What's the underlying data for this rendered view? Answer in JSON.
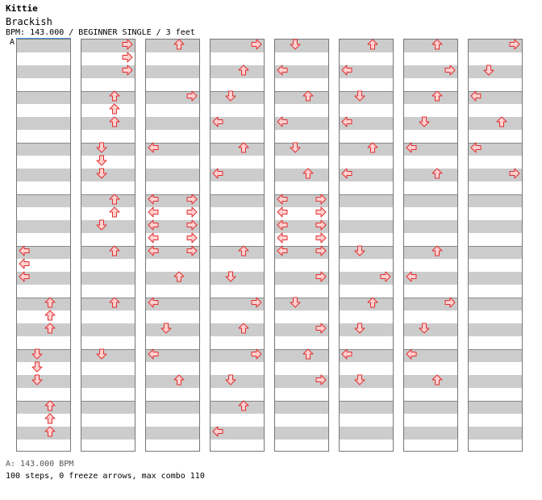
{
  "song": {
    "title": "Kittie",
    "subtitle": "Brackish",
    "info": "BPM: 143.000 / BEGINNER SINGLE / 3 feet"
  },
  "bpm_marker": "A",
  "footer": {
    "bpm_legend": "A: 143.000 BPM",
    "summary": "100 steps, 0 freeze arrows, max combo 110"
  },
  "colors": {
    "arrow_fill": "#ffd0d0",
    "arrow_stroke": "#e03030",
    "stripe": "#cccccc",
    "bpm_line": "#4a90d9"
  },
  "chart": {
    "columns": 8,
    "rows_per_column": 32,
    "measures_per_column": 8,
    "lanes": [
      "left",
      "down",
      "up",
      "right"
    ],
    "notes": [
      {
        "c": 0,
        "r": 0,
        "lanes": []
      },
      {
        "c": 0,
        "r": 16,
        "lanes": [
          0
        ]
      },
      {
        "c": 0,
        "r": 17,
        "lanes": [
          0
        ]
      },
      {
        "c": 0,
        "r": 18,
        "lanes": [
          0
        ]
      },
      {
        "c": 0,
        "r": 20,
        "lanes": [
          2
        ]
      },
      {
        "c": 0,
        "r": 21,
        "lanes": [
          2
        ]
      },
      {
        "c": 0,
        "r": 22,
        "lanes": [
          2
        ]
      },
      {
        "c": 0,
        "r": 24,
        "lanes": [
          1
        ]
      },
      {
        "c": 0,
        "r": 25,
        "lanes": [
          1
        ]
      },
      {
        "c": 0,
        "r": 26,
        "lanes": [
          1
        ]
      },
      {
        "c": 0,
        "r": 28,
        "lanes": [
          2
        ]
      },
      {
        "c": 0,
        "r": 29,
        "lanes": [
          2
        ]
      },
      {
        "c": 0,
        "r": 30,
        "lanes": [
          2
        ]
      },
      {
        "c": 1,
        "r": 0,
        "lanes": [
          3
        ]
      },
      {
        "c": 1,
        "r": 1,
        "lanes": [
          3
        ]
      },
      {
        "c": 1,
        "r": 2,
        "lanes": [
          3
        ]
      },
      {
        "c": 1,
        "r": 4,
        "lanes": [
          2
        ]
      },
      {
        "c": 1,
        "r": 5,
        "lanes": [
          2
        ]
      },
      {
        "c": 1,
        "r": 6,
        "lanes": [
          2
        ]
      },
      {
        "c": 1,
        "r": 8,
        "lanes": [
          1
        ]
      },
      {
        "c": 1,
        "r": 9,
        "lanes": [
          1
        ]
      },
      {
        "c": 1,
        "r": 10,
        "lanes": [
          1
        ]
      },
      {
        "c": 1,
        "r": 12,
        "lanes": [
          2
        ]
      },
      {
        "c": 1,
        "r": 13,
        "lanes": [
          2
        ]
      },
      {
        "c": 1,
        "r": 14,
        "lanes": [
          1
        ]
      },
      {
        "c": 1,
        "r": 16,
        "lanes": [
          2
        ]
      },
      {
        "c": 1,
        "r": 20,
        "lanes": [
          2
        ]
      },
      {
        "c": 1,
        "r": 24,
        "lanes": [
          1
        ]
      },
      {
        "c": 2,
        "r": 0,
        "lanes": [
          2
        ]
      },
      {
        "c": 2,
        "r": 4,
        "lanes": [
          3
        ]
      },
      {
        "c": 2,
        "r": 8,
        "lanes": [
          0
        ]
      },
      {
        "c": 2,
        "r": 12,
        "lanes": [
          0,
          3
        ]
      },
      {
        "c": 2,
        "r": 13,
        "lanes": [
          0,
          3
        ]
      },
      {
        "c": 2,
        "r": 14,
        "lanes": [
          0,
          3
        ]
      },
      {
        "c": 2,
        "r": 15,
        "lanes": [
          0,
          3
        ]
      },
      {
        "c": 2,
        "r": 16,
        "lanes": [
          0,
          3
        ]
      },
      {
        "c": 2,
        "r": 18,
        "lanes": [
          2
        ]
      },
      {
        "c": 2,
        "r": 20,
        "lanes": [
          0
        ]
      },
      {
        "c": 2,
        "r": 22,
        "lanes": [
          1
        ]
      },
      {
        "c": 2,
        "r": 24,
        "lanes": [
          0
        ]
      },
      {
        "c": 2,
        "r": 26,
        "lanes": [
          2
        ]
      },
      {
        "c": 3,
        "r": 0,
        "lanes": [
          3
        ]
      },
      {
        "c": 3,
        "r": 2,
        "lanes": [
          2
        ]
      },
      {
        "c": 3,
        "r": 4,
        "lanes": [
          1
        ]
      },
      {
        "c": 3,
        "r": 6,
        "lanes": [
          0
        ]
      },
      {
        "c": 3,
        "r": 8,
        "lanes": [
          2
        ]
      },
      {
        "c": 3,
        "r": 10,
        "lanes": [
          0
        ]
      },
      {
        "c": 3,
        "r": 16,
        "lanes": [
          2
        ]
      },
      {
        "c": 3,
        "r": 18,
        "lanes": [
          1
        ]
      },
      {
        "c": 3,
        "r": 20,
        "lanes": [
          3
        ]
      },
      {
        "c": 3,
        "r": 22,
        "lanes": [
          2
        ]
      },
      {
        "c": 3,
        "r": 24,
        "lanes": [
          3
        ]
      },
      {
        "c": 3,
        "r": 26,
        "lanes": [
          1
        ]
      },
      {
        "c": 3,
        "r": 28,
        "lanes": [
          2
        ]
      },
      {
        "c": 3,
        "r": 30,
        "lanes": [
          0
        ]
      },
      {
        "c": 4,
        "r": 0,
        "lanes": [
          1
        ]
      },
      {
        "c": 4,
        "r": 2,
        "lanes": [
          0
        ]
      },
      {
        "c": 4,
        "r": 4,
        "lanes": [
          2
        ]
      },
      {
        "c": 4,
        "r": 6,
        "lanes": [
          0
        ]
      },
      {
        "c": 4,
        "r": 8,
        "lanes": [
          1
        ]
      },
      {
        "c": 4,
        "r": 10,
        "lanes": [
          2
        ]
      },
      {
        "c": 4,
        "r": 12,
        "lanes": [
          0,
          3
        ]
      },
      {
        "c": 4,
        "r": 13,
        "lanes": [
          0,
          3
        ]
      },
      {
        "c": 4,
        "r": 14,
        "lanes": [
          0,
          3
        ]
      },
      {
        "c": 4,
        "r": 15,
        "lanes": [
          0,
          3
        ]
      },
      {
        "c": 4,
        "r": 16,
        "lanes": [
          0,
          3
        ]
      },
      {
        "c": 4,
        "r": 18,
        "lanes": [
          3
        ]
      },
      {
        "c": 4,
        "r": 20,
        "lanes": [
          1
        ]
      },
      {
        "c": 4,
        "r": 22,
        "lanes": [
          3
        ]
      },
      {
        "c": 4,
        "r": 24,
        "lanes": [
          2
        ]
      },
      {
        "c": 4,
        "r": 26,
        "lanes": [
          3
        ]
      },
      {
        "c": 5,
        "r": 0,
        "lanes": [
          2
        ]
      },
      {
        "c": 5,
        "r": 2,
        "lanes": [
          0
        ]
      },
      {
        "c": 5,
        "r": 4,
        "lanes": [
          1
        ]
      },
      {
        "c": 5,
        "r": 6,
        "lanes": [
          0
        ]
      },
      {
        "c": 5,
        "r": 8,
        "lanes": [
          2
        ]
      },
      {
        "c": 5,
        "r": 10,
        "lanes": [
          0
        ]
      },
      {
        "c": 5,
        "r": 16,
        "lanes": [
          1
        ]
      },
      {
        "c": 5,
        "r": 18,
        "lanes": [
          3
        ]
      },
      {
        "c": 5,
        "r": 20,
        "lanes": [
          2
        ]
      },
      {
        "c": 5,
        "r": 22,
        "lanes": [
          1
        ]
      },
      {
        "c": 5,
        "r": 24,
        "lanes": [
          0
        ]
      },
      {
        "c": 5,
        "r": 26,
        "lanes": [
          1
        ]
      },
      {
        "c": 6,
        "r": 0,
        "lanes": [
          2
        ]
      },
      {
        "c": 6,
        "r": 2,
        "lanes": [
          3
        ]
      },
      {
        "c": 6,
        "r": 4,
        "lanes": [
          2
        ]
      },
      {
        "c": 6,
        "r": 6,
        "lanes": [
          1
        ]
      },
      {
        "c": 6,
        "r": 8,
        "lanes": [
          0
        ]
      },
      {
        "c": 6,
        "r": 10,
        "lanes": [
          2
        ]
      },
      {
        "c": 6,
        "r": 16,
        "lanes": [
          2
        ]
      },
      {
        "c": 6,
        "r": 18,
        "lanes": [
          0
        ]
      },
      {
        "c": 6,
        "r": 20,
        "lanes": [
          3
        ]
      },
      {
        "c": 6,
        "r": 22,
        "lanes": [
          1
        ]
      },
      {
        "c": 6,
        "r": 24,
        "lanes": [
          0
        ]
      },
      {
        "c": 6,
        "r": 26,
        "lanes": [
          2
        ]
      },
      {
        "c": 7,
        "r": 0,
        "lanes": [
          3
        ]
      },
      {
        "c": 7,
        "r": 2,
        "lanes": [
          1
        ]
      },
      {
        "c": 7,
        "r": 4,
        "lanes": [
          0
        ]
      },
      {
        "c": 7,
        "r": 6,
        "lanes": [
          2
        ]
      },
      {
        "c": 7,
        "r": 8,
        "lanes": [
          0
        ]
      },
      {
        "c": 7,
        "r": 10,
        "lanes": [
          3
        ]
      }
    ]
  }
}
